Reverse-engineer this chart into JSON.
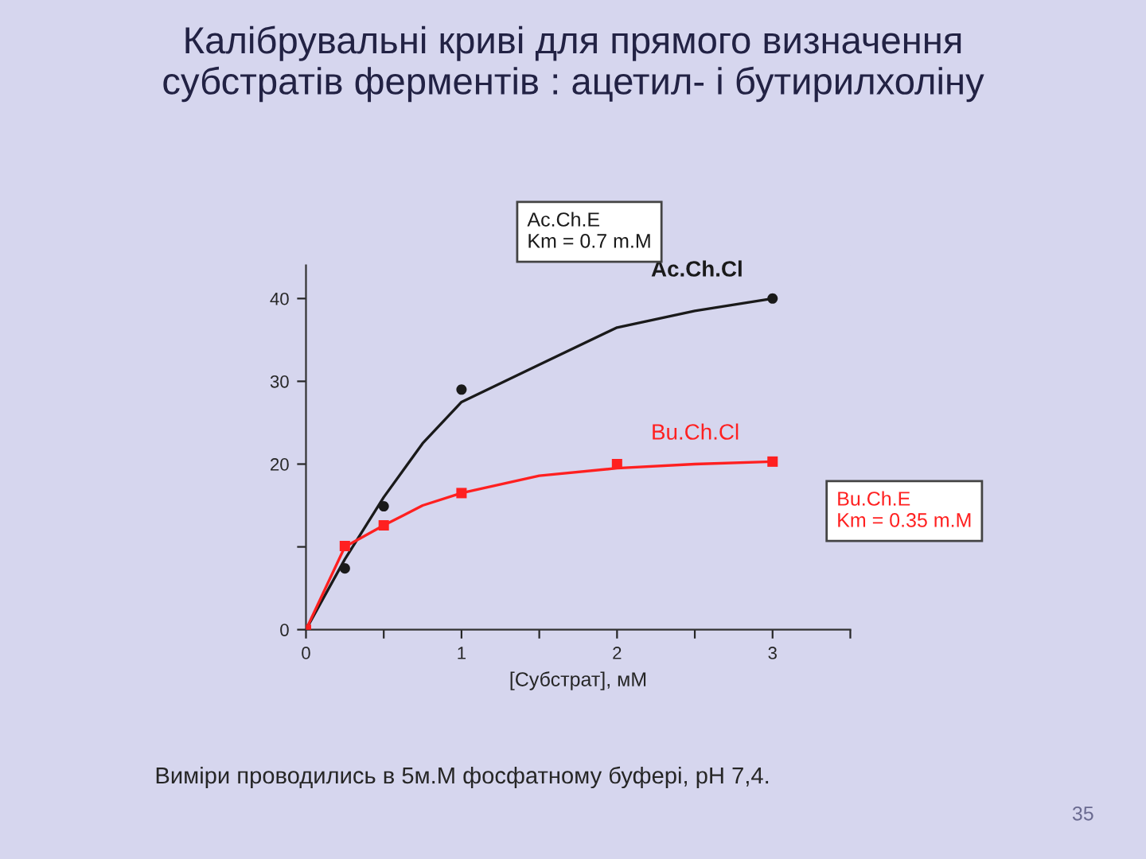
{
  "chart_data": {
    "type": "scatter",
    "title": "Калібрувальні криві для прямого визначення\nсубстратів ферментів : ацетил- і бутирилхоліну",
    "xlabel": "[Субстрат], мМ",
    "series": [
      {
        "name": "Ac.Ch.Cl",
        "color": "#1a1a1a",
        "x": [
          0,
          0.25,
          0.5,
          1,
          3
        ],
        "values": [
          0,
          7.4,
          14.9,
          29,
          40
        ],
        "marker": "circle"
      },
      {
        "name": "Bu.Ch.Cl",
        "color": "#ff2020",
        "x": [
          0,
          0.25,
          0.5,
          1,
          2,
          3
        ],
        "values": [
          0,
          10.1,
          12.6,
          16.5,
          20,
          20.3
        ],
        "marker": "square"
      },
      {
        "type": "line",
        "color": "#1a1a1a",
        "x": [
          0,
          0.25,
          0.5,
          0.75,
          1,
          1.5,
          2,
          2.5,
          3
        ],
        "values": [
          0,
          8.5,
          16,
          22.5,
          27.5,
          32,
          36.5,
          38.5,
          40
        ],
        "marker": "none"
      },
      {
        "type": "line",
        "color": "#ff2020",
        "x": [
          0,
          0.25,
          0.5,
          0.75,
          1,
          1.5,
          2,
          2.5,
          3
        ],
        "values": [
          0,
          10,
          12.6,
          15,
          16.5,
          18.6,
          19.5,
          20,
          20.3
        ],
        "marker": "none"
      }
    ],
    "xlim": [
      0,
      3.5
    ],
    "ylim": [
      0,
      44
    ],
    "xticks": [
      0,
      {
        "value": 0.5,
        "label": null
      },
      1,
      {
        "value": 1.5,
        "label": null
      },
      2,
      {
        "value": 2.5,
        "label": null
      },
      3,
      {
        "value": 3.5,
        "label": null
      }
    ],
    "yticks": [
      0,
      {
        "value": 10,
        "label": null
      },
      20,
      30,
      40
    ],
    "grid": false,
    "legend": false,
    "annotations": [
      "Ac.Ch.E\nKm = 0.7 m.M",
      "Bu.Ch.E\nKm = 0.35 m.M",
      "Виміри проводились в 5м.М фосфатному буфері, рН 7,4.",
      "35"
    ]
  }
}
